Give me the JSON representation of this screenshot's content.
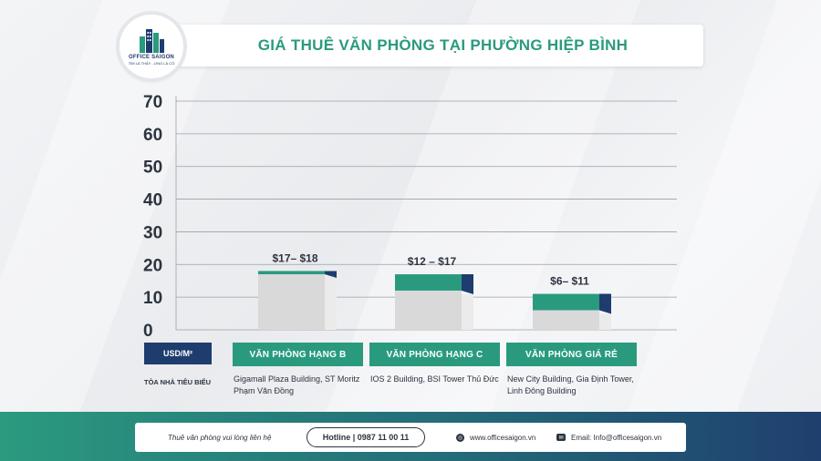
{
  "brand": {
    "name": "OFFICE SAIGON",
    "tagline": "TÌM LÀ THẤY - ƯNG LÀ CÓ",
    "colors": {
      "green": "#2a9a7e",
      "navy": "#1e3c6e",
      "grey": "#d6d6d6"
    },
    "logo_icon": "building-icon"
  },
  "title": "GIÁ THUÊ VĂN PHÒNG TẠI PHƯỜNG HIỆP BÌNH",
  "chart_data": {
    "type": "bar",
    "title": "GIÁ THUÊ VĂN PHÒNG TẠI PHƯỜNG HIỆP BÌNH",
    "ylabel": "USD/M²",
    "ylim": [
      0,
      70
    ],
    "yticks": [
      "0",
      "10",
      "20",
      "30",
      "40",
      "50",
      "60",
      "70"
    ],
    "grid": true,
    "categories": [
      "VĂN PHÒNG HẠNG B",
      "VĂN PHÒNG HẠNG C",
      "VĂN PHÒNG GIÁ RẺ"
    ],
    "ranges": [
      {
        "min": 17,
        "max": 18,
        "label": "$17– $18"
      },
      {
        "min": 12,
        "max": 17,
        "label": "$12 – $17"
      },
      {
        "min": 6,
        "max": 11,
        "label": "$6– $11"
      }
    ]
  },
  "axis": {
    "unit_label": "USD/M²",
    "representative_label": "TÒA NHÀ TIÊU BIỂU"
  },
  "representative_buildings": [
    [
      "Gigamall Plaza Building, ST Moritz",
      "Phạm Văn Đồng"
    ],
    [
      "IOS 2 Building, BSI Tower Thủ Đức"
    ],
    [
      "New City Building, Gia Định Tower,",
      "Linh Đông Building"
    ]
  ],
  "footer": {
    "contact_text": "Thuê văn phòng vui lòng liên hệ",
    "hotline": "Hotline | 0987 11 00 11",
    "website": "www.officesaigon.vn",
    "website_icon": "globe-icon",
    "email": "Email: Info@officesaigon.vn",
    "email_icon": "mail-icon"
  }
}
